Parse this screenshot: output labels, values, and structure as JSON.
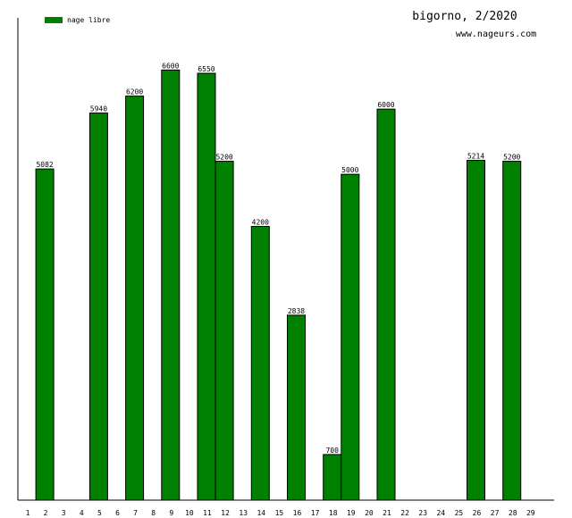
{
  "chart_data": {
    "type": "bar",
    "title": "bigorno, 2/2020",
    "subtitle": "www.nageurs.com",
    "categories": [
      "1",
      "2",
      "3",
      "4",
      "5",
      "6",
      "7",
      "8",
      "9",
      "10",
      "11",
      "12",
      "13",
      "14",
      "15",
      "16",
      "17",
      "18",
      "19",
      "20",
      "21",
      "22",
      "23",
      "24",
      "25",
      "26",
      "27",
      "28",
      "29"
    ],
    "series": [
      {
        "name": "nage libre",
        "color": "#008000",
        "values": [
          null,
          5082,
          null,
          null,
          5940,
          null,
          6200,
          null,
          6600,
          null,
          6550,
          5200,
          null,
          4200,
          null,
          2838,
          null,
          700,
          5000,
          null,
          6000,
          null,
          null,
          null,
          null,
          5214,
          null,
          5200,
          null
        ]
      }
    ],
    "ylim": [
      0,
      7400
    ],
    "grid": false
  }
}
